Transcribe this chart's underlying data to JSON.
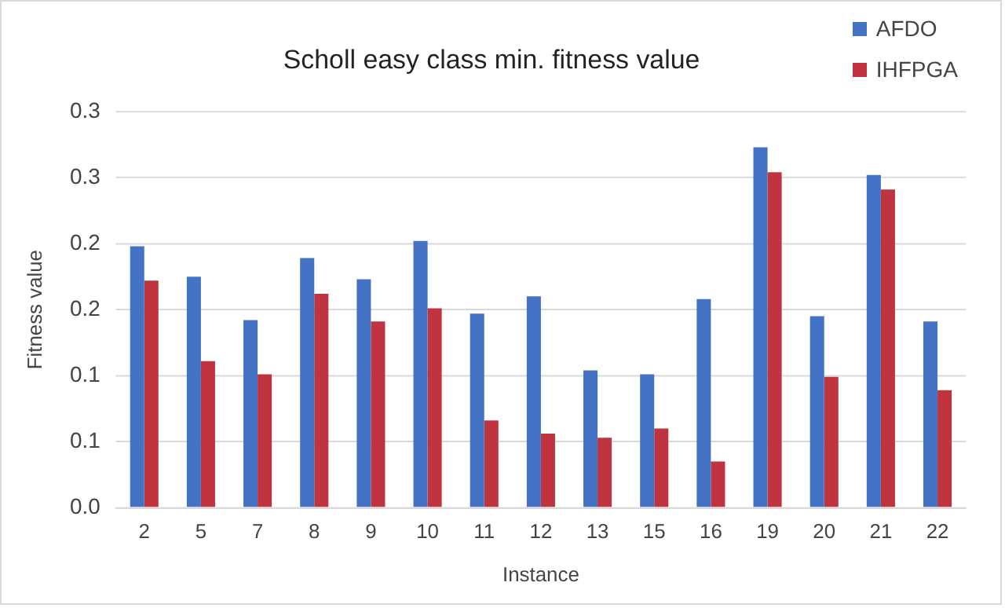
{
  "chart_data": {
    "type": "bar",
    "title": "Scholl easy class min. fitness value",
    "xlabel": "Instance",
    "ylabel": "Fitness value",
    "categories": [
      "2",
      "5",
      "7",
      "8",
      "9",
      "10",
      "11",
      "12",
      "13",
      "15",
      "16",
      "19",
      "20",
      "21",
      "22"
    ],
    "series": [
      {
        "name": "AFDO",
        "color": "#4472c4",
        "values": [
          0.198,
          0.175,
          0.142,
          0.189,
          0.173,
          0.202,
          0.147,
          0.16,
          0.104,
          0.101,
          0.158,
          0.273,
          0.145,
          0.252,
          0.141
        ]
      },
      {
        "name": "IHFPGA",
        "color": "#c0343f",
        "values": [
          0.172,
          0.111,
          0.101,
          0.162,
          0.141,
          0.151,
          0.066,
          0.056,
          0.053,
          0.06,
          0.035,
          0.254,
          0.099,
          0.241,
          0.089
        ]
      }
    ],
    "ylim": [
      0,
      0.3
    ],
    "yticks": [
      {
        "value": 0,
        "label": "0.0"
      },
      {
        "value": 0.05,
        "label": "0.1"
      },
      {
        "value": 0.1,
        "label": "0.1"
      },
      {
        "value": 0.15,
        "label": "0.2"
      },
      {
        "value": 0.2,
        "label": "0.2"
      },
      {
        "value": 0.25,
        "label": "0.3"
      },
      {
        "value": 0.3,
        "label": "0.3"
      }
    ],
    "grid": "y",
    "legend": "top right"
  }
}
